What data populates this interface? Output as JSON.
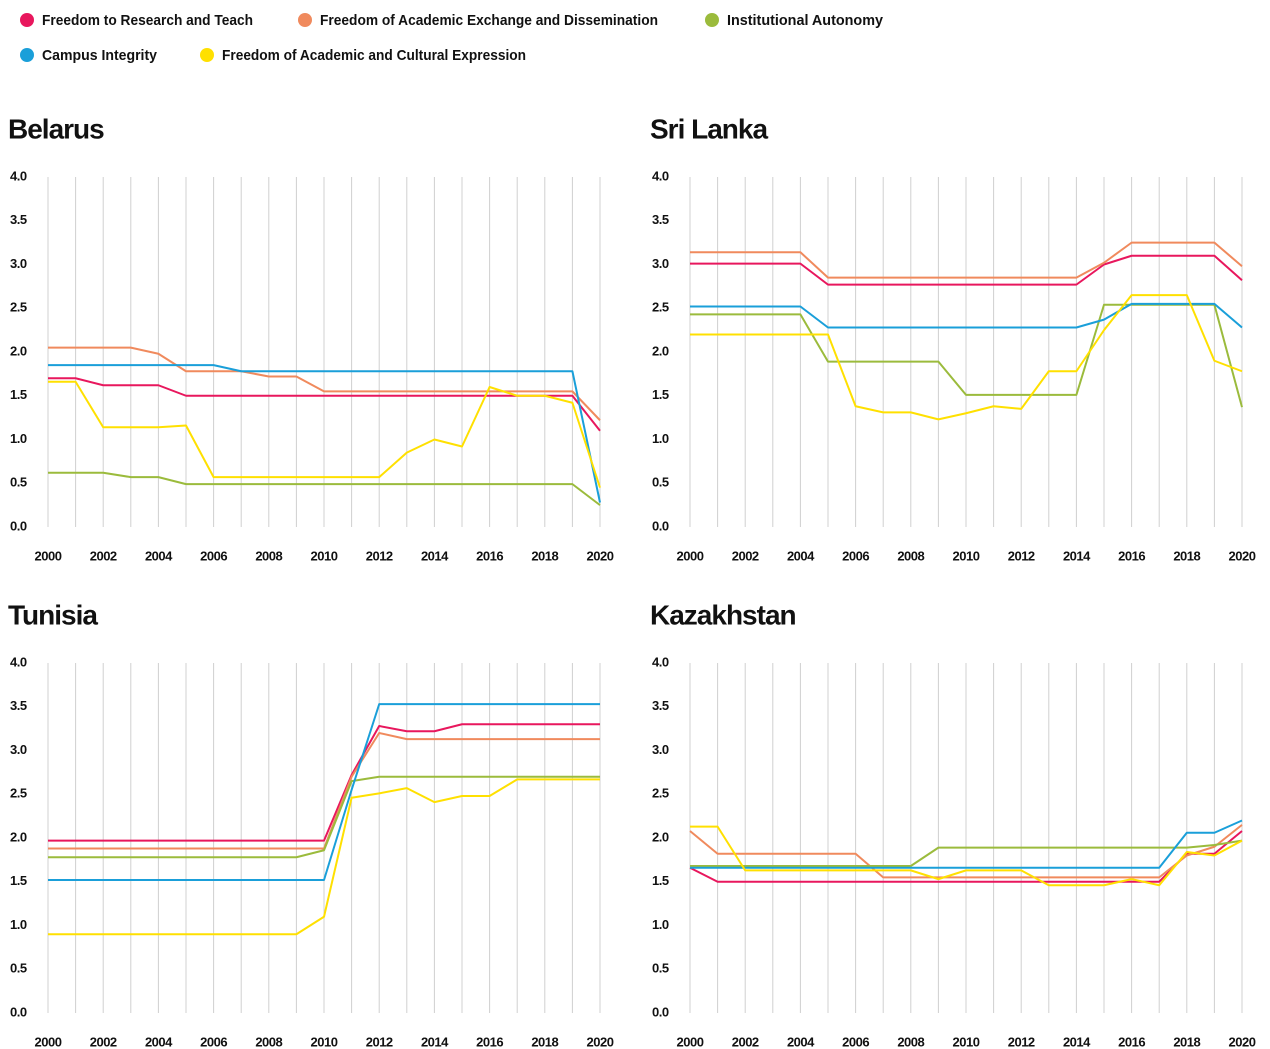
{
  "chart_data": [
    {
      "type": "line",
      "title": "Belarus",
      "grid": "x",
      "x": [
        2000,
        2001,
        2002,
        2003,
        2004,
        2005,
        2006,
        2007,
        2008,
        2009,
        2010,
        2011,
        2012,
        2013,
        2014,
        2015,
        2016,
        2017,
        2018,
        2019,
        2020
      ],
      "xlim": [
        2000,
        2020
      ],
      "xticks": [
        2000,
        2002,
        2004,
        2006,
        2008,
        2010,
        2012,
        2014,
        2016,
        2018,
        2020
      ],
      "ylim": [
        0,
        4
      ],
      "yticks": [
        {
          "value": 0,
          "label": "0.0"
        },
        0.5,
        {
          "value": 1,
          "label": "1.0"
        },
        1.5,
        {
          "value": 2,
          "label": "2.0"
        },
        2.5,
        {
          "value": 3,
          "label": "3.0"
        },
        3.5,
        {
          "value": 4,
          "label": "4.0"
        }
      ],
      "series": [
        {
          "name": "Freedom to Research and Teach",
          "color": "#e8175d",
          "values": [
            1.7,
            1.7,
            1.62,
            1.62,
            1.62,
            1.5,
            1.5,
            1.5,
            1.5,
            1.5,
            1.5,
            1.5,
            1.5,
            1.5,
            1.5,
            1.5,
            1.5,
            1.5,
            1.5,
            1.5,
            1.1
          ]
        },
        {
          "name": "Freedom of Academic Exchange and Dissemination",
          "color": "#f08a5d",
          "values": [
            2.05,
            2.05,
            2.05,
            2.05,
            1.98,
            1.78,
            1.78,
            1.78,
            1.72,
            1.72,
            1.55,
            1.55,
            1.55,
            1.55,
            1.55,
            1.55,
            1.55,
            1.55,
            1.55,
            1.55,
            1.22
          ]
        },
        {
          "name": "Institutional Autonomy",
          "color": "#9bbb3c",
          "values": [
            0.62,
            0.62,
            0.62,
            0.57,
            0.57,
            0.49,
            0.49,
            0.49,
            0.49,
            0.49,
            0.49,
            0.49,
            0.49,
            0.49,
            0.49,
            0.49,
            0.49,
            0.49,
            0.49,
            0.49,
            0.25
          ]
        },
        {
          "name": "Campus Integrity",
          "color": "#1a9fd9",
          "values": [
            1.85,
            1.85,
            1.85,
            1.85,
            1.85,
            1.85,
            1.85,
            1.78,
            1.78,
            1.78,
            1.78,
            1.78,
            1.78,
            1.78,
            1.78,
            1.78,
            1.78,
            1.78,
            1.78,
            1.78,
            0.28
          ]
        },
        {
          "name": "Freedom of Academic and Cultural Expression",
          "color": "#ffe000",
          "values": [
            1.66,
            1.66,
            1.14,
            1.14,
            1.14,
            1.16,
            0.57,
            0.57,
            0.57,
            0.57,
            0.57,
            0.57,
            0.57,
            0.85,
            1.0,
            0.92,
            1.6,
            1.5,
            1.5,
            1.42,
            0.45
          ]
        }
      ]
    },
    {
      "type": "line",
      "title": "Sri Lanka",
      "grid": "x",
      "x": [
        2000,
        2001,
        2002,
        2003,
        2004,
        2005,
        2006,
        2007,
        2008,
        2009,
        2010,
        2011,
        2012,
        2013,
        2014,
        2015,
        2016,
        2017,
        2018,
        2019,
        2020
      ],
      "xlim": [
        2000,
        2020
      ],
      "xticks": [
        2000,
        2002,
        2004,
        2006,
        2008,
        2010,
        2012,
        2014,
        2016,
        2018,
        2020
      ],
      "ylim": [
        0,
        4
      ],
      "yticks": [
        {
          "value": 0,
          "label": "0.0"
        },
        0.5,
        {
          "value": 1,
          "label": "1.0"
        },
        1.5,
        {
          "value": 2,
          "label": "2.0"
        },
        2.5,
        {
          "value": 3,
          "label": "3.0"
        },
        3.5,
        {
          "value": 4,
          "label": "4.0"
        }
      ],
      "series": [
        {
          "name": "Freedom to Research and Teach",
          "color": "#e8175d",
          "values": [
            3.01,
            3.01,
            3.01,
            3.01,
            3.01,
            2.77,
            2.77,
            2.77,
            2.77,
            2.77,
            2.77,
            2.77,
            2.77,
            2.77,
            2.77,
            3.0,
            3.1,
            3.1,
            3.1,
            3.1,
            2.82
          ]
        },
        {
          "name": "Freedom of Academic Exchange and Dissemination",
          "color": "#f08a5d",
          "values": [
            3.14,
            3.14,
            3.14,
            3.14,
            3.14,
            2.85,
            2.85,
            2.85,
            2.85,
            2.85,
            2.85,
            2.85,
            2.85,
            2.85,
            2.85,
            3.02,
            3.25,
            3.25,
            3.25,
            3.25,
            2.98
          ]
        },
        {
          "name": "Institutional Autonomy",
          "color": "#9bbb3c",
          "values": [
            2.43,
            2.43,
            2.43,
            2.43,
            2.43,
            1.89,
            1.89,
            1.89,
            1.89,
            1.89,
            1.51,
            1.51,
            1.51,
            1.51,
            1.51,
            2.54,
            2.54,
            2.54,
            2.54,
            2.54,
            1.37
          ]
        },
        {
          "name": "Campus Integrity",
          "color": "#1a9fd9",
          "values": [
            2.52,
            2.52,
            2.52,
            2.52,
            2.52,
            2.28,
            2.28,
            2.28,
            2.28,
            2.28,
            2.28,
            2.28,
            2.28,
            2.28,
            2.28,
            2.37,
            2.55,
            2.55,
            2.55,
            2.55,
            2.28
          ]
        },
        {
          "name": "Freedom of Academic and Cultural Expression",
          "color": "#ffe000",
          "values": [
            2.2,
            2.2,
            2.2,
            2.2,
            2.2,
            2.2,
            1.38,
            1.31,
            1.31,
            1.23,
            1.3,
            1.38,
            1.35,
            1.78,
            1.78,
            2.25,
            2.65,
            2.65,
            2.65,
            1.9,
            1.78
          ]
        }
      ]
    },
    {
      "type": "line",
      "title": "Tunisia",
      "grid": "x",
      "x": [
        2000,
        2001,
        2002,
        2003,
        2004,
        2005,
        2006,
        2007,
        2008,
        2009,
        2010,
        2011,
        2012,
        2013,
        2014,
        2015,
        2016,
        2017,
        2018,
        2019,
        2020
      ],
      "xlim": [
        2000,
        2020
      ],
      "xticks": [
        2000,
        2002,
        2004,
        2006,
        2008,
        2010,
        2012,
        2014,
        2016,
        2018,
        2020
      ],
      "ylim": [
        0,
        4
      ],
      "yticks": [
        {
          "value": 0,
          "label": "0.0"
        },
        0.5,
        {
          "value": 1,
          "label": "1.0"
        },
        1.5,
        {
          "value": 2,
          "label": "2.0"
        },
        2.5,
        {
          "value": 3,
          "label": "3.0"
        },
        3.5,
        {
          "value": 4,
          "label": "4.0"
        }
      ],
      "series": [
        {
          "name": "Freedom to Research and Teach",
          "color": "#e8175d",
          "values": [
            1.97,
            1.97,
            1.97,
            1.97,
            1.97,
            1.97,
            1.97,
            1.97,
            1.97,
            1.97,
            1.97,
            2.72,
            3.28,
            3.22,
            3.22,
            3.3,
            3.3,
            3.3,
            3.3,
            3.3,
            3.3
          ]
        },
        {
          "name": "Freedom of Academic Exchange and Dissemination",
          "color": "#f08a5d",
          "values": [
            1.88,
            1.88,
            1.88,
            1.88,
            1.88,
            1.88,
            1.88,
            1.88,
            1.88,
            1.88,
            1.88,
            2.7,
            3.2,
            3.13,
            3.13,
            3.13,
            3.13,
            3.13,
            3.13,
            3.13,
            3.13
          ]
        },
        {
          "name": "Institutional Autonomy",
          "color": "#9bbb3c",
          "values": [
            1.78,
            1.78,
            1.78,
            1.78,
            1.78,
            1.78,
            1.78,
            1.78,
            1.78,
            1.78,
            1.86,
            2.65,
            2.7,
            2.7,
            2.7,
            2.7,
            2.7,
            2.7,
            2.7,
            2.7,
            2.7
          ]
        },
        {
          "name": "Campus Integrity",
          "color": "#1a9fd9",
          "values": [
            1.52,
            1.52,
            1.52,
            1.52,
            1.52,
            1.52,
            1.52,
            1.52,
            1.52,
            1.52,
            1.52,
            2.55,
            3.53,
            3.53,
            3.53,
            3.53,
            3.53,
            3.53,
            3.53,
            3.53,
            3.53
          ]
        },
        {
          "name": "Freedom of Academic and Cultural Expression",
          "color": "#ffe000",
          "values": [
            0.9,
            0.9,
            0.9,
            0.9,
            0.9,
            0.9,
            0.9,
            0.9,
            0.9,
            0.9,
            1.1,
            2.46,
            2.51,
            2.57,
            2.41,
            2.48,
            2.48,
            2.67,
            2.67,
            2.67,
            2.67
          ]
        }
      ]
    },
    {
      "type": "line",
      "title": "Kazakhstan",
      "grid": "x",
      "x": [
        2000,
        2001,
        2002,
        2003,
        2004,
        2005,
        2006,
        2007,
        2008,
        2009,
        2010,
        2011,
        2012,
        2013,
        2014,
        2015,
        2016,
        2017,
        2018,
        2019,
        2020
      ],
      "xlim": [
        2000,
        2020
      ],
      "xticks": [
        2000,
        2002,
        2004,
        2006,
        2008,
        2010,
        2012,
        2014,
        2016,
        2018,
        2020
      ],
      "ylim": [
        0,
        4
      ],
      "yticks": [
        {
          "value": 0,
          "label": "0.0"
        },
        0.5,
        {
          "value": 1,
          "label": "1.0"
        },
        1.5,
        {
          "value": 2,
          "label": "2.0"
        },
        2.5,
        {
          "value": 3,
          "label": "3.0"
        },
        3.5,
        {
          "value": 4,
          "label": "4.0"
        }
      ],
      "series": [
        {
          "name": "Freedom to Research and Teach",
          "color": "#e8175d",
          "values": [
            1.66,
            1.5,
            1.5,
            1.5,
            1.5,
            1.5,
            1.5,
            1.5,
            1.5,
            1.5,
            1.5,
            1.5,
            1.5,
            1.5,
            1.5,
            1.5,
            1.5,
            1.5,
            1.82,
            1.82,
            2.08
          ]
        },
        {
          "name": "Freedom of Academic Exchange and Dissemination",
          "color": "#f08a5d",
          "values": [
            2.08,
            1.82,
            1.82,
            1.82,
            1.82,
            1.82,
            1.82,
            1.55,
            1.55,
            1.55,
            1.55,
            1.55,
            1.55,
            1.55,
            1.55,
            1.55,
            1.55,
            1.55,
            1.8,
            1.9,
            2.15
          ]
        },
        {
          "name": "Institutional Autonomy",
          "color": "#9bbb3c",
          "values": [
            1.68,
            1.68,
            1.68,
            1.68,
            1.68,
            1.68,
            1.68,
            1.68,
            1.68,
            1.89,
            1.89,
            1.89,
            1.89,
            1.89,
            1.89,
            1.89,
            1.89,
            1.89,
            1.89,
            1.92,
            1.97
          ]
        },
        {
          "name": "Campus Integrity",
          "color": "#1a9fd9",
          "values": [
            1.66,
            1.66,
            1.66,
            1.66,
            1.66,
            1.66,
            1.66,
            1.66,
            1.66,
            1.66,
            1.66,
            1.66,
            1.66,
            1.66,
            1.66,
            1.66,
            1.66,
            1.66,
            2.06,
            2.06,
            2.2
          ]
        },
        {
          "name": "Freedom of Academic and Cultural Expression",
          "color": "#ffe000",
          "values": [
            2.13,
            2.13,
            1.63,
            1.63,
            1.63,
            1.63,
            1.63,
            1.63,
            1.63,
            1.53,
            1.63,
            1.63,
            1.63,
            1.46,
            1.46,
            1.46,
            1.53,
            1.46,
            1.84,
            1.8,
            1.97
          ]
        }
      ]
    }
  ]
}
